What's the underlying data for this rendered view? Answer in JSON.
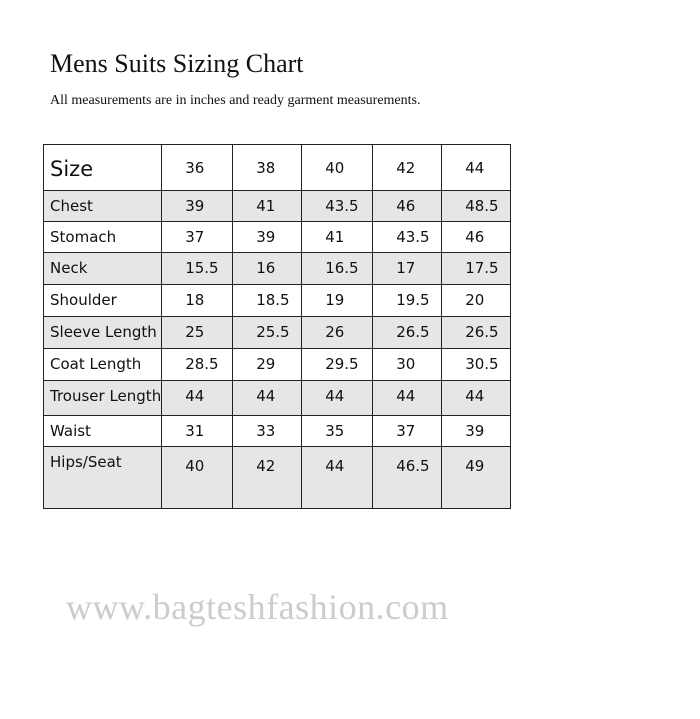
{
  "title": "Mens Suits Sizing Chart",
  "subtitle": "All measurements are in inches and ready garment measurements.",
  "table": {
    "header": [
      "Size",
      "36",
      "38",
      "40",
      "42",
      "44"
    ],
    "rows": [
      {
        "label": "Chest",
        "values": [
          "39",
          "41",
          "43.5",
          "46",
          "48.5"
        ]
      },
      {
        "label": "Stomach",
        "values": [
          "37",
          "39",
          "41",
          "43.5",
          "46"
        ]
      },
      {
        "label": "Neck",
        "values": [
          "15.5",
          "16",
          "16.5",
          "17",
          "17.5"
        ]
      },
      {
        "label": "Shoulder",
        "values": [
          "18",
          "18.5",
          "19",
          "19.5",
          "20"
        ]
      },
      {
        "label": "Sleeve Length",
        "values": [
          "25",
          "25.5",
          "26",
          "26.5",
          "26.5"
        ]
      },
      {
        "label": "Coat Length",
        "values": [
          "28.5",
          "29",
          "29.5",
          "30",
          "30.5"
        ]
      },
      {
        "label": "Trouser Length",
        "values": [
          "44",
          "44",
          "44",
          "44",
          "44"
        ]
      },
      {
        "label": "Waist",
        "values": [
          "31",
          "33",
          "35",
          "37",
          "39"
        ]
      },
      {
        "label": "Hips/Seat",
        "values": [
          "40",
          "42",
          "44",
          "46.5",
          "49"
        ]
      }
    ]
  },
  "colors": {
    "shaded_row": "#e6e6e6",
    "border": "#222222",
    "watermark": "#cccccc"
  },
  "watermark": "www.bagteshfashion.com"
}
